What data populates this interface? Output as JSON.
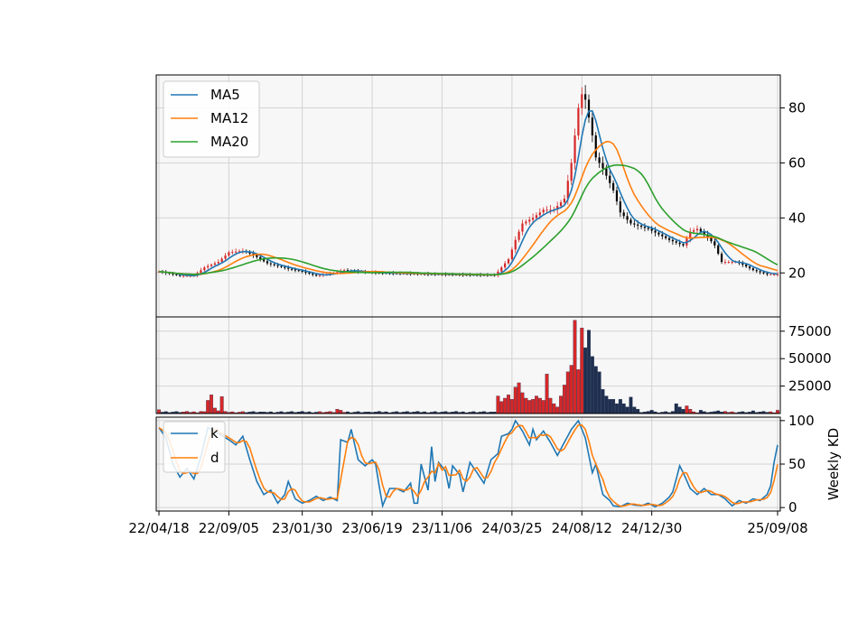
{
  "chart_data": [
    {
      "type": "candlestick",
      "panel": "price",
      "ylim": [
        4,
        92
      ],
      "yticks": [
        20,
        40,
        60,
        80
      ],
      "ytick_labels": [
        "20",
        "40",
        "60",
        "80"
      ],
      "grid": true,
      "legend_position": "upper-left",
      "up_color": "#d62728",
      "down_color": "#000000",
      "n_weeks": 178,
      "price_anchors": [
        [
          0,
          20.5
        ],
        [
          6,
          19
        ],
        [
          10,
          19
        ],
        [
          13,
          22
        ],
        [
          17,
          24
        ],
        [
          20,
          27.5
        ],
        [
          24,
          28
        ],
        [
          27,
          26.5
        ],
        [
          31,
          23.5
        ],
        [
          37,
          21.5
        ],
        [
          41,
          20.5
        ],
        [
          45,
          19
        ],
        [
          50,
          20
        ],
        [
          53,
          21
        ],
        [
          57,
          20.5
        ],
        [
          63,
          20
        ],
        [
          70,
          19.8
        ],
        [
          80,
          19.5
        ],
        [
          88,
          19.3
        ],
        [
          96,
          19.2
        ],
        [
          97,
          20.5
        ],
        [
          100,
          25
        ],
        [
          102,
          32
        ],
        [
          104,
          38
        ],
        [
          107,
          40
        ],
        [
          110,
          43
        ],
        [
          113,
          43
        ],
        [
          116,
          47
        ],
        [
          118,
          60
        ],
        [
          120,
          80
        ],
        [
          121,
          85
        ],
        [
          122,
          83
        ],
        [
          124,
          70
        ],
        [
          125,
          62
        ],
        [
          127,
          58
        ],
        [
          130,
          50
        ],
        [
          132,
          42
        ],
        [
          135,
          38
        ],
        [
          140,
          36
        ],
        [
          146,
          32
        ],
        [
          150,
          30
        ],
        [
          152,
          35
        ],
        [
          154,
          36
        ],
        [
          157,
          33
        ],
        [
          159,
          30
        ],
        [
          161,
          24
        ],
        [
          165,
          24
        ],
        [
          167,
          23
        ],
        [
          170,
          21
        ],
        [
          174,
          19.5
        ],
        [
          177,
          19.5
        ]
      ],
      "series": [
        {
          "name": "MA5",
          "color": "#1f77b4",
          "window": 5
        },
        {
          "name": "MA12",
          "color": "#ff7f0e",
          "window": 12
        },
        {
          "name": "MA20",
          "color": "#2ca02c",
          "window": 20
        }
      ]
    },
    {
      "type": "bar",
      "panel": "volume",
      "ylim": [
        0,
        88000
      ],
      "yticks": [
        25000,
        50000,
        75000
      ],
      "ytick_labels": [
        "25000",
        "50000",
        "75000"
      ],
      "grid": true,
      "volume_anchors": [
        [
          0,
          3500
        ],
        [
          12,
          2000
        ],
        [
          14,
          12000
        ],
        [
          15,
          17000
        ],
        [
          16,
          5000
        ],
        [
          17,
          2500
        ],
        [
          18,
          15500
        ],
        [
          19,
          2000
        ],
        [
          30,
          1500
        ],
        [
          51,
          4000
        ],
        [
          52,
          3000
        ],
        [
          60,
          1500
        ],
        [
          96,
          1500
        ],
        [
          97,
          16000
        ],
        [
          98,
          11000
        ],
        [
          99,
          14000
        ],
        [
          100,
          17000
        ],
        [
          101,
          13000
        ],
        [
          102,
          24000
        ],
        [
          103,
          28000
        ],
        [
          104,
          19000
        ],
        [
          105,
          14000
        ],
        [
          106,
          12000
        ],
        [
          107,
          13000
        ],
        [
          108,
          16000
        ],
        [
          109,
          14000
        ],
        [
          110,
          12000
        ],
        [
          111,
          36000
        ],
        [
          112,
          14000
        ],
        [
          113,
          9000
        ],
        [
          114,
          6000
        ],
        [
          115,
          16000
        ],
        [
          116,
          26000
        ],
        [
          117,
          38000
        ],
        [
          118,
          44000
        ],
        [
          119,
          85000
        ],
        [
          120,
          40000
        ],
        [
          121,
          78000
        ],
        [
          122,
          60000
        ],
        [
          123,
          76000
        ],
        [
          124,
          52000
        ],
        [
          125,
          43000
        ],
        [
          126,
          38000
        ],
        [
          127,
          22000
        ],
        [
          128,
          16000
        ],
        [
          129,
          13000
        ],
        [
          130,
          13000
        ],
        [
          131,
          9000
        ],
        [
          132,
          13000
        ],
        [
          133,
          9000
        ],
        [
          134,
          6000
        ],
        [
          135,
          15000
        ],
        [
          136,
          6000
        ],
        [
          137,
          4000
        ],
        [
          141,
          3000
        ],
        [
          147,
          2000
        ],
        [
          148,
          9000
        ],
        [
          149,
          6000
        ],
        [
          150,
          4000
        ],
        [
          151,
          7000
        ],
        [
          152,
          4000
        ],
        [
          155,
          3000
        ],
        [
          160,
          2500
        ],
        [
          170,
          2500
        ],
        [
          177,
          3000
        ]
      ]
    },
    {
      "type": "line",
      "panel": "kd",
      "ylabel": "Weekly KD",
      "ylim": [
        -4,
        104
      ],
      "yticks": [
        0,
        50,
        100
      ],
      "ytick_labels": [
        "0",
        "50",
        "100"
      ],
      "grid": true,
      "legend_position": "upper-left",
      "x_tick_labels": [
        "22/04/18",
        "22/09/05",
        "23/01/30",
        "23/06/19",
        "23/11/06",
        "24/03/25",
        "24/08/12",
        "24/12/30",
        "25/09/08"
      ],
      "x_tick_weeks": [
        0,
        20,
        41,
        61,
        81,
        101,
        121,
        141,
        177
      ],
      "series": [
        {
          "name": "k",
          "color": "#1f77b4",
          "anchors": [
            [
              0,
              92
            ],
            [
              2,
              80
            ],
            [
              4,
              50
            ],
            [
              6,
              35
            ],
            [
              8,
              45
            ],
            [
              10,
              33
            ],
            [
              12,
              58
            ],
            [
              14,
              92
            ],
            [
              17,
              85
            ],
            [
              20,
              78
            ],
            [
              22,
              72
            ],
            [
              24,
              82
            ],
            [
              26,
              55
            ],
            [
              28,
              30
            ],
            [
              30,
              15
            ],
            [
              32,
              20
            ],
            [
              34,
              5
            ],
            [
              36,
              15
            ],
            [
              37,
              30
            ],
            [
              39,
              10
            ],
            [
              41,
              5
            ],
            [
              43,
              8
            ],
            [
              45,
              13
            ],
            [
              47,
              8
            ],
            [
              49,
              12
            ],
            [
              51,
              8
            ],
            [
              52,
              78
            ],
            [
              54,
              75
            ],
            [
              55,
              90
            ],
            [
              57,
              55
            ],
            [
              59,
              48
            ],
            [
              61,
              55
            ],
            [
              62,
              50
            ],
            [
              63,
              25
            ],
            [
              64,
              2
            ],
            [
              66,
              22
            ],
            [
              68,
              22
            ],
            [
              70,
              18
            ],
            [
              72,
              28
            ],
            [
              73,
              5
            ],
            [
              74,
              5
            ],
            [
              75,
              50
            ],
            [
              77,
              20
            ],
            [
              78,
              70
            ],
            [
              79,
              30
            ],
            [
              80,
              52
            ],
            [
              82,
              42
            ],
            [
              83,
              22
            ],
            [
              84,
              48
            ],
            [
              86,
              38
            ],
            [
              87,
              18
            ],
            [
              89,
              52
            ],
            [
              91,
              40
            ],
            [
              93,
              28
            ],
            [
              95,
              55
            ],
            [
              97,
              62
            ],
            [
              98,
              82
            ],
            [
              100,
              85
            ],
            [
              101,
              90
            ],
            [
              102,
              100
            ],
            [
              104,
              88
            ],
            [
              106,
              72
            ],
            [
              107,
              90
            ],
            [
              108,
              78
            ],
            [
              110,
              88
            ],
            [
              112,
              75
            ],
            [
              114,
              60
            ],
            [
              116,
              75
            ],
            [
              118,
              90
            ],
            [
              120,
              100
            ],
            [
              122,
              80
            ],
            [
              124,
              40
            ],
            [
              125,
              50
            ],
            [
              127,
              15
            ],
            [
              129,
              8
            ],
            [
              130,
              2
            ],
            [
              132,
              1
            ],
            [
              134,
              5
            ],
            [
              136,
              3
            ],
            [
              138,
              2
            ],
            [
              140,
              5
            ],
            [
              142,
              1
            ],
            [
              144,
              5
            ],
            [
              146,
              12
            ],
            [
              147,
              18
            ],
            [
              149,
              48
            ],
            [
              150,
              40
            ],
            [
              152,
              22
            ],
            [
              154,
              15
            ],
            [
              156,
              22
            ],
            [
              158,
              15
            ],
            [
              160,
              15
            ],
            [
              162,
              10
            ],
            [
              164,
              2
            ],
            [
              166,
              8
            ],
            [
              168,
              5
            ],
            [
              170,
              10
            ],
            [
              172,
              8
            ],
            [
              174,
              15
            ],
            [
              175,
              25
            ],
            [
              176,
              52
            ],
            [
              177,
              72
            ]
          ]
        },
        {
          "name": "d",
          "color": "#ff7f0e",
          "window": 3
        }
      ]
    }
  ]
}
